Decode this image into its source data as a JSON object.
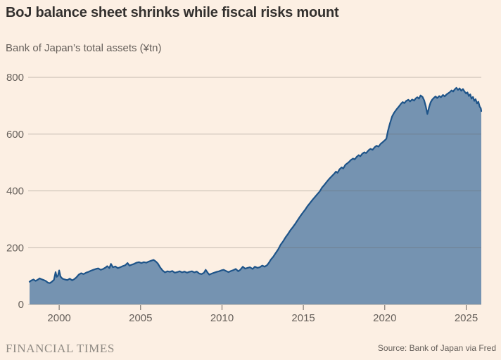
{
  "header": {
    "title": "BoJ balance sheet shrinks while fiscal risks mount",
    "subtitle": "Bank of Japan’s total assets (¥tn)"
  },
  "footer": {
    "brand": "FINANCIAL TIMES",
    "source": "Source: Bank of Japan via Fred"
  },
  "chart_data": {
    "type": "area",
    "title": "BoJ balance sheet shrinks while fiscal risks mount",
    "subtitle": "Bank of Japan’s total assets (¥tn)",
    "xlabel": "",
    "ylabel": "¥tn",
    "xlim": [
      1998.18,
      2025.93
    ],
    "ylim": [
      0,
      800
    ],
    "yticks": [
      0,
      200,
      400,
      600,
      800
    ],
    "xticks": [
      2000,
      2005,
      2010,
      2015,
      2020,
      2025
    ],
    "grid": "horizontal",
    "legend": "none",
    "colors": {
      "background": "#fcefe3",
      "area_fill": "#7593b1",
      "line": "#1e5489",
      "gridline_rgba": "rgba(102,96,91,0.38)",
      "tick": "#66605b",
      "text": "#66605b"
    },
    "series": [
      {
        "name": "BoJ total assets",
        "points": [
          [
            1998.18,
            80
          ],
          [
            1998.3,
            85
          ],
          [
            1998.42,
            88
          ],
          [
            1998.55,
            83
          ],
          [
            1998.68,
            87
          ],
          [
            1998.8,
            92
          ],
          [
            1998.92,
            89
          ],
          [
            1999.05,
            86
          ],
          [
            1999.17,
            83
          ],
          [
            1999.3,
            77
          ],
          [
            1999.42,
            75
          ],
          [
            1999.55,
            80
          ],
          [
            1999.68,
            87
          ],
          [
            1999.78,
            114
          ],
          [
            1999.85,
            97
          ],
          [
            1999.92,
            101
          ],
          [
            2000.0,
            120
          ],
          [
            2000.08,
            98
          ],
          [
            2000.2,
            91
          ],
          [
            2000.35,
            88
          ],
          [
            2000.5,
            86
          ],
          [
            2000.65,
            91
          ],
          [
            2000.8,
            85
          ],
          [
            2000.92,
            89
          ],
          [
            2001.05,
            95
          ],
          [
            2001.2,
            105
          ],
          [
            2001.35,
            110
          ],
          [
            2001.5,
            107
          ],
          [
            2001.65,
            112
          ],
          [
            2001.8,
            115
          ],
          [
            2001.95,
            119
          ],
          [
            2002.1,
            122
          ],
          [
            2002.25,
            125
          ],
          [
            2002.4,
            127
          ],
          [
            2002.55,
            122
          ],
          [
            2002.7,
            125
          ],
          [
            2002.85,
            130
          ],
          [
            2002.95,
            135
          ],
          [
            2003.08,
            128
          ],
          [
            2003.18,
            143
          ],
          [
            2003.3,
            131
          ],
          [
            2003.45,
            134
          ],
          [
            2003.6,
            128
          ],
          [
            2003.75,
            131
          ],
          [
            2003.9,
            135
          ],
          [
            2004.05,
            138
          ],
          [
            2004.2,
            146
          ],
          [
            2004.32,
            137
          ],
          [
            2004.45,
            140
          ],
          [
            2004.6,
            143
          ],
          [
            2004.75,
            147
          ],
          [
            2004.9,
            149
          ],
          [
            2005.05,
            146
          ],
          [
            2005.2,
            149
          ],
          [
            2005.35,
            147
          ],
          [
            2005.5,
            151
          ],
          [
            2005.65,
            154
          ],
          [
            2005.8,
            157
          ],
          [
            2005.92,
            152
          ],
          [
            2006.05,
            145
          ],
          [
            2006.2,
            131
          ],
          [
            2006.35,
            120
          ],
          [
            2006.5,
            113
          ],
          [
            2006.65,
            117
          ],
          [
            2006.8,
            115
          ],
          [
            2006.95,
            118
          ],
          [
            2007.1,
            112
          ],
          [
            2007.25,
            114
          ],
          [
            2007.4,
            117
          ],
          [
            2007.55,
            113
          ],
          [
            2007.7,
            116
          ],
          [
            2007.85,
            112
          ],
          [
            2008.0,
            115
          ],
          [
            2008.15,
            117
          ],
          [
            2008.3,
            113
          ],
          [
            2008.45,
            116
          ],
          [
            2008.6,
            109
          ],
          [
            2008.75,
            107
          ],
          [
            2008.9,
            112
          ],
          [
            2009.0,
            122
          ],
          [
            2009.12,
            112
          ],
          [
            2009.22,
            105
          ],
          [
            2009.38,
            109
          ],
          [
            2009.52,
            112
          ],
          [
            2009.68,
            115
          ],
          [
            2009.82,
            117
          ],
          [
            2009.95,
            120
          ],
          [
            2010.1,
            122
          ],
          [
            2010.25,
            118
          ],
          [
            2010.4,
            114
          ],
          [
            2010.55,
            118
          ],
          [
            2010.7,
            121
          ],
          [
            2010.85,
            125
          ],
          [
            2011.0,
            117
          ],
          [
            2011.12,
            122
          ],
          [
            2011.28,
            133
          ],
          [
            2011.42,
            126
          ],
          [
            2011.58,
            129
          ],
          [
            2011.72,
            131
          ],
          [
            2011.88,
            125
          ],
          [
            2012.02,
            133
          ],
          [
            2012.18,
            129
          ],
          [
            2012.32,
            131
          ],
          [
            2012.48,
            137
          ],
          [
            2012.62,
            133
          ],
          [
            2012.78,
            139
          ],
          [
            2012.9,
            148
          ],
          [
            2013.0,
            158
          ],
          [
            2013.15,
            168
          ],
          [
            2013.3,
            181
          ],
          [
            2013.45,
            194
          ],
          [
            2013.6,
            210
          ],
          [
            2013.75,
            222
          ],
          [
            2013.9,
            236
          ],
          [
            2014.05,
            248
          ],
          [
            2014.2,
            261
          ],
          [
            2014.35,
            272
          ],
          [
            2014.5,
            284
          ],
          [
            2014.65,
            297
          ],
          [
            2014.8,
            310
          ],
          [
            2014.95,
            322
          ],
          [
            2015.1,
            333
          ],
          [
            2015.25,
            346
          ],
          [
            2015.4,
            357
          ],
          [
            2015.55,
            368
          ],
          [
            2015.7,
            378
          ],
          [
            2015.85,
            388
          ],
          [
            2016.0,
            398
          ],
          [
            2016.15,
            412
          ],
          [
            2016.3,
            422
          ],
          [
            2016.45,
            433
          ],
          [
            2016.6,
            443
          ],
          [
            2016.75,
            452
          ],
          [
            2016.9,
            461
          ],
          [
            2017.0,
            468
          ],
          [
            2017.1,
            464
          ],
          [
            2017.22,
            476
          ],
          [
            2017.35,
            483
          ],
          [
            2017.45,
            479
          ],
          [
            2017.58,
            492
          ],
          [
            2017.7,
            497
          ],
          [
            2017.82,
            503
          ],
          [
            2017.92,
            509
          ],
          [
            2018.05,
            514
          ],
          [
            2018.15,
            511
          ],
          [
            2018.28,
            520
          ],
          [
            2018.4,
            526
          ],
          [
            2018.5,
            522
          ],
          [
            2018.62,
            531
          ],
          [
            2018.75,
            536
          ],
          [
            2018.85,
            533
          ],
          [
            2019.0,
            543
          ],
          [
            2019.12,
            548
          ],
          [
            2019.25,
            545
          ],
          [
            2019.38,
            554
          ],
          [
            2019.5,
            559
          ],
          [
            2019.62,
            556
          ],
          [
            2019.75,
            566
          ],
          [
            2019.88,
            572
          ],
          [
            2020.0,
            578
          ],
          [
            2020.1,
            584
          ],
          [
            2020.2,
            612
          ],
          [
            2020.32,
            638
          ],
          [
            2020.45,
            662
          ],
          [
            2020.58,
            676
          ],
          [
            2020.72,
            687
          ],
          [
            2020.85,
            696
          ],
          [
            2021.0,
            707
          ],
          [
            2021.1,
            713
          ],
          [
            2021.2,
            709
          ],
          [
            2021.32,
            717
          ],
          [
            2021.45,
            721
          ],
          [
            2021.55,
            715
          ],
          [
            2021.68,
            722
          ],
          [
            2021.8,
            718
          ],
          [
            2021.9,
            726
          ],
          [
            2022.0,
            730
          ],
          [
            2022.1,
            725
          ],
          [
            2022.2,
            736
          ],
          [
            2022.32,
            731
          ],
          [
            2022.42,
            719
          ],
          [
            2022.52,
            698
          ],
          [
            2022.62,
            671
          ],
          [
            2022.72,
            694
          ],
          [
            2022.82,
            712
          ],
          [
            2022.92,
            722
          ],
          [
            2023.02,
            728
          ],
          [
            2023.12,
            733
          ],
          [
            2023.22,
            727
          ],
          [
            2023.35,
            734
          ],
          [
            2023.45,
            730
          ],
          [
            2023.58,
            738
          ],
          [
            2023.68,
            733
          ],
          [
            2023.8,
            740
          ],
          [
            2023.9,
            744
          ],
          [
            2024.0,
            748
          ],
          [
            2024.1,
            754
          ],
          [
            2024.2,
            750
          ],
          [
            2024.3,
            758
          ],
          [
            2024.4,
            763
          ],
          [
            2024.5,
            756
          ],
          [
            2024.6,
            761
          ],
          [
            2024.7,
            753
          ],
          [
            2024.8,
            759
          ],
          [
            2024.9,
            750
          ],
          [
            2025.0,
            743
          ],
          [
            2025.08,
            747
          ],
          [
            2025.17,
            734
          ],
          [
            2025.25,
            740
          ],
          [
            2025.33,
            725
          ],
          [
            2025.42,
            731
          ],
          [
            2025.5,
            717
          ],
          [
            2025.58,
            723
          ],
          [
            2025.67,
            708
          ],
          [
            2025.75,
            714
          ],
          [
            2025.83,
            697
          ],
          [
            2025.9,
            691
          ],
          [
            2025.93,
            681
          ]
        ]
      }
    ]
  }
}
